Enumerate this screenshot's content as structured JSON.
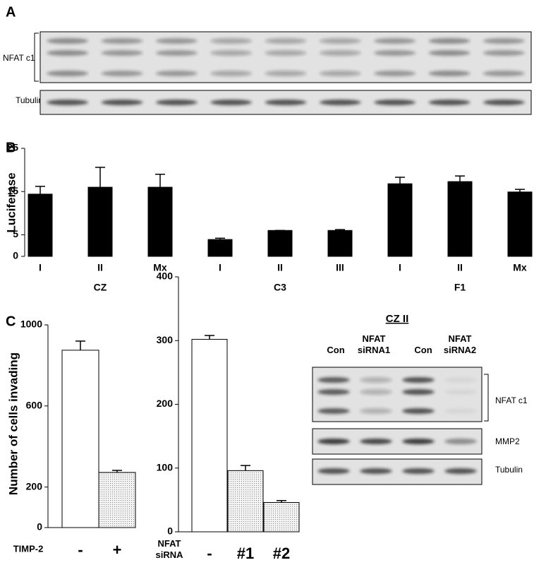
{
  "panel_labels": [
    "A",
    "B",
    "C"
  ],
  "blot_a": {
    "labels": [
      "NFAT c1",
      "Tubulin"
    ]
  },
  "chart_data": [
    {
      "type": "bar",
      "ylabel": "Luciferase",
      "categories": [
        "I",
        "II",
        "Mx",
        "I",
        "II",
        "III",
        "I",
        "II",
        "Mx"
      ],
      "groups": [
        "CZ",
        "C3",
        "F1"
      ],
      "values": [
        14.4,
        16.0,
        16.0,
        3.9,
        6.0,
        6.0,
        16.8,
        17.3,
        14.9
      ],
      "errors": [
        1.8,
        4.6,
        3.0,
        0.3,
        0.0,
        0.2,
        1.5,
        1.3,
        0.6
      ],
      "color": "#000000",
      "ylim": [
        0,
        25
      ],
      "yticks": [
        0,
        5,
        15,
        25
      ]
    },
    {
      "type": "bar",
      "ylabel": "Number of cells invading",
      "xlabel": "TIMP-2",
      "categories": [
        "-",
        "+"
      ],
      "values": [
        875,
        272
      ],
      "errors": [
        45,
        10
      ],
      "colors": [
        "#ffffff",
        "#d4d4d4"
      ],
      "ylim": [
        0,
        1000
      ],
      "yticks": [
        0,
        200,
        600,
        1000
      ]
    },
    {
      "type": "bar",
      "xlabel": "NFAT siRNA",
      "categories": [
        "-",
        "#1",
        "#2"
      ],
      "values": [
        302,
        96,
        46
      ],
      "errors": [
        6,
        8,
        3
      ],
      "colors": [
        "#ffffff",
        "#d4d4d4",
        "#d4d4d4"
      ],
      "ylim": [
        0,
        400
      ],
      "yticks": [
        0,
        100,
        200,
        300,
        400
      ]
    }
  ],
  "blot_c": {
    "title": "CZ II",
    "lanes": [
      "Con",
      "NFAT siRNA1",
      "Con",
      "NFAT siRNA2"
    ],
    "labels": [
      "NFAT c1",
      "MMP2",
      "Tubulin"
    ]
  }
}
